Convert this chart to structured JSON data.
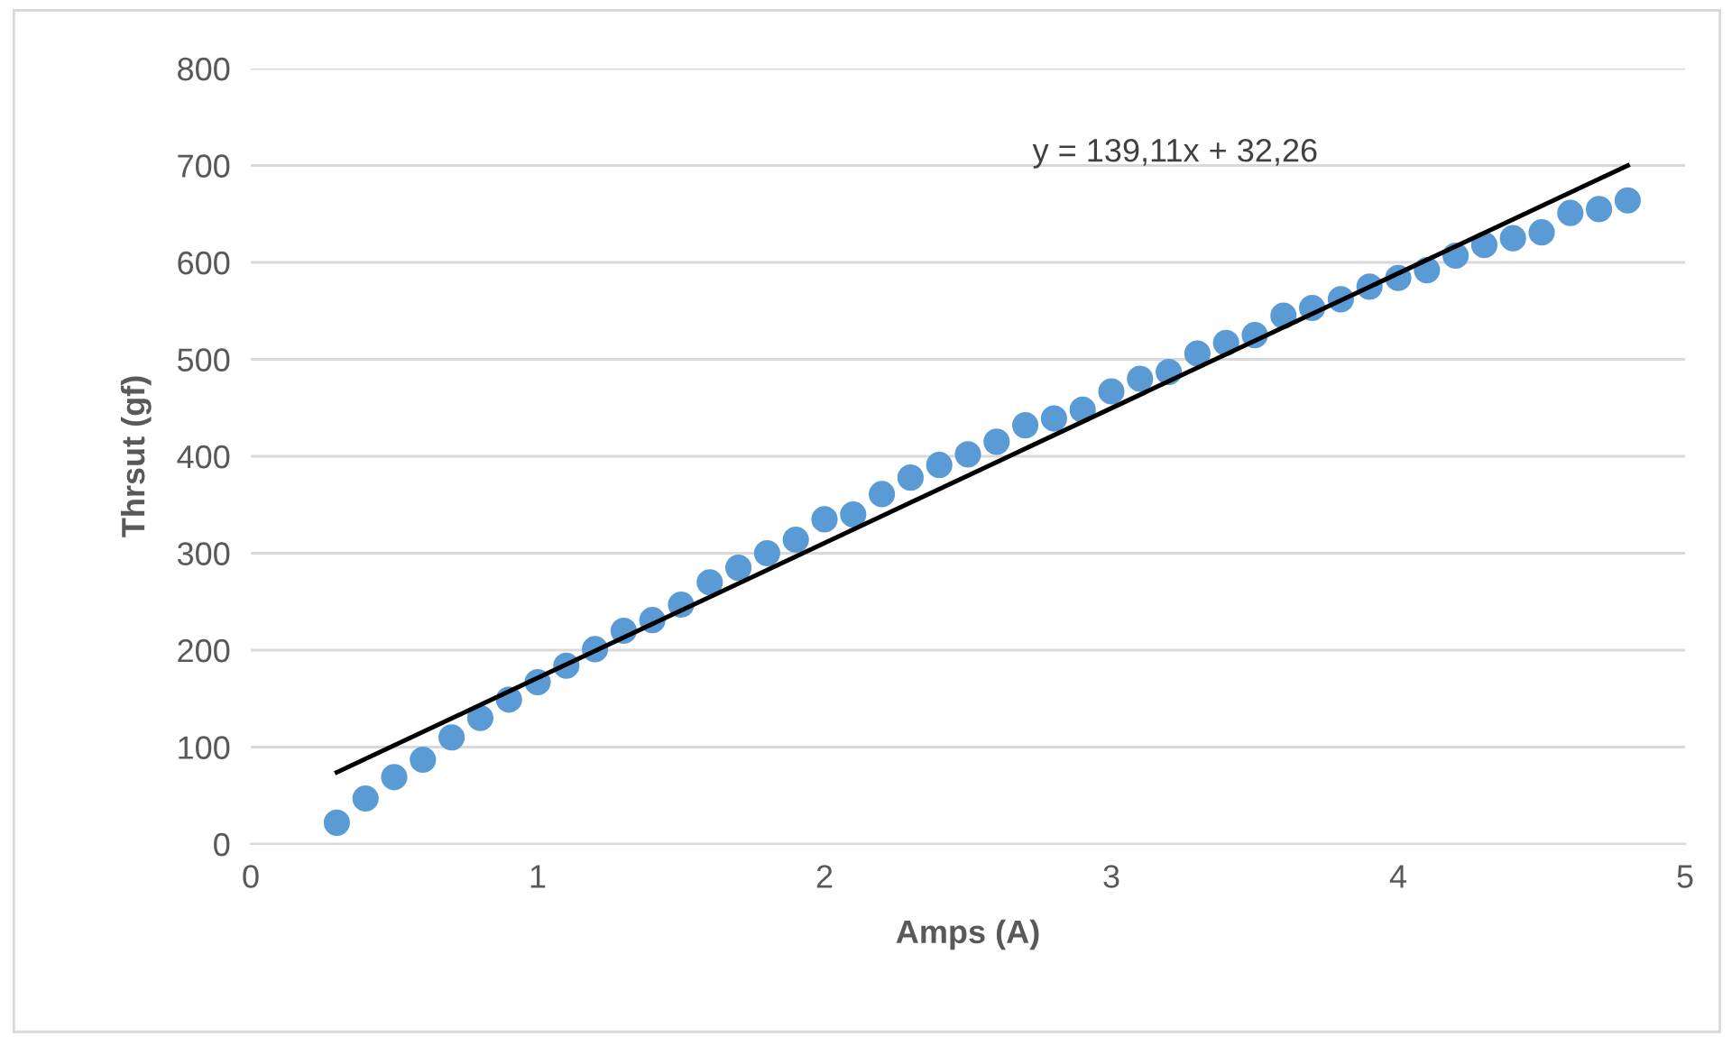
{
  "chart_data": {
    "type": "scatter",
    "xlabel": "Amps (A)",
    "ylabel": "Thrsut (gf)",
    "xlim": [
      0,
      5
    ],
    "xticks": [
      0,
      1,
      2,
      3,
      4,
      5
    ],
    "ylim": [
      0,
      800
    ],
    "yticks": [
      0,
      100,
      200,
      300,
      400,
      500,
      600,
      700,
      800
    ],
    "grid": "y",
    "legend": false,
    "annotations": [
      "y = 139,11x + 32,26"
    ],
    "series": [
      {
        "marker": "circle",
        "color": "#5b9bd5",
        "x": [
          0.3,
          0.4,
          0.5,
          0.6,
          0.7,
          0.8,
          0.9,
          1.0,
          1.1,
          1.2,
          1.3,
          1.4,
          1.5,
          1.6,
          1.7,
          1.8,
          1.9,
          2.0,
          2.1,
          2.2,
          2.3,
          2.4,
          2.5,
          2.6,
          2.7,
          2.8,
          2.9,
          3.0,
          3.1,
          3.2,
          3.3,
          3.4,
          3.5,
          3.6,
          3.7,
          3.8,
          3.9,
          4.0,
          4.1,
          4.2,
          4.3,
          4.4,
          4.5,
          4.6,
          4.7,
          4.8
        ],
        "values": [
          22,
          47,
          69,
          87,
          110,
          130,
          149,
          167,
          184,
          201,
          220,
          231,
          247,
          270,
          285,
          300,
          314,
          335,
          340,
          361,
          378,
          391,
          402,
          415,
          432,
          439,
          448,
          467,
          480,
          487,
          506,
          517,
          525,
          545,
          553,
          562,
          575,
          584,
          592,
          607,
          618,
          625,
          631,
          651,
          655,
          664
        ]
      },
      {
        "type": "line",
        "marker": "none",
        "color": "#000000",
        "line_style": "solid",
        "x": [
          0.3,
          4.8
        ],
        "values": [
          74,
          700
        ]
      }
    ]
  }
}
